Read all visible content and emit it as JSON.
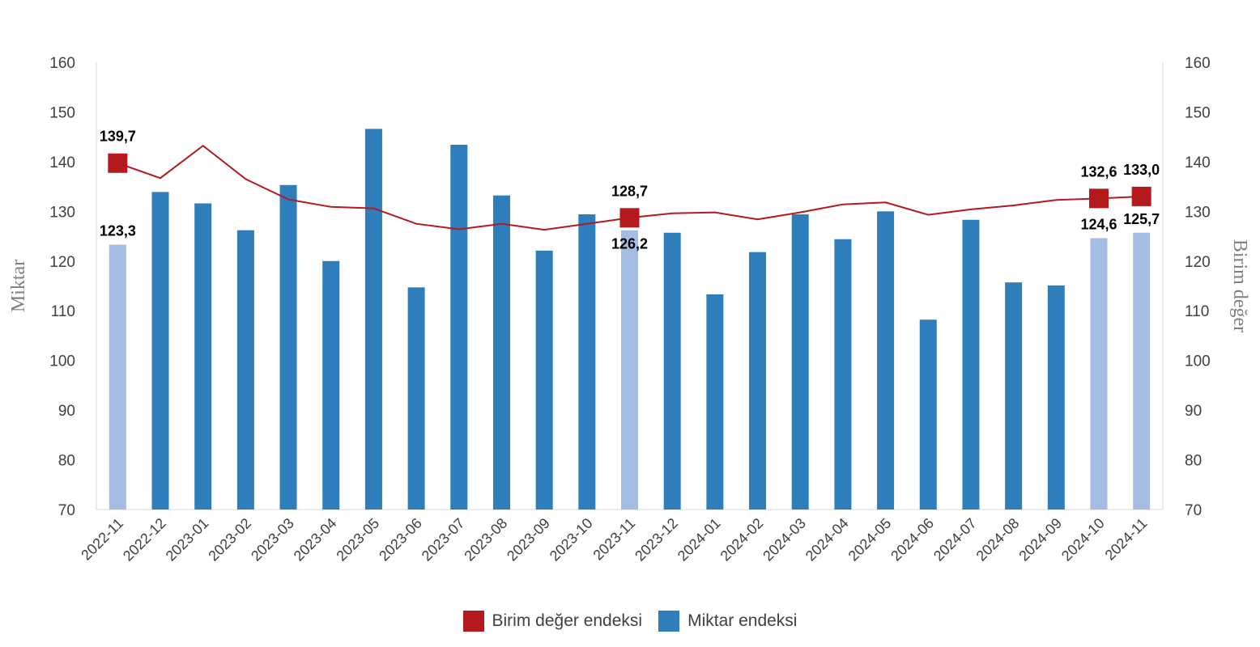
{
  "chart_data": {
    "type": "bar",
    "categories": [
      "2022-11",
      "2022-12",
      "2023-01",
      "2023-02",
      "2023-03",
      "2023-04",
      "2023-05",
      "2023-06",
      "2023-07",
      "2023-08",
      "2023-09",
      "2023-10",
      "2023-11",
      "2023-12",
      "2024-01",
      "2024-02",
      "2024-03",
      "2024-04",
      "2024-05",
      "2024-06",
      "2024-07",
      "2024-08",
      "2024-09",
      "2024-10",
      "2024-11"
    ],
    "series": [
      {
        "name": "Miktar endeksi",
        "type": "bar",
        "axis": "left",
        "color": "#2e7ebb",
        "highlight_color": "#a3bde3",
        "highlight_indices": [
          0,
          12,
          23,
          24
        ],
        "values": [
          123.3,
          133.9,
          131.6,
          126.2,
          135.3,
          120.0,
          146.6,
          114.7,
          143.4,
          133.2,
          122.1,
          129.4,
          126.2,
          125.7,
          113.3,
          121.8,
          129.4,
          124.4,
          130.0,
          108.2,
          128.3,
          115.7,
          115.1,
          124.6,
          125.7
        ]
      },
      {
        "name": "Birim değer endeksi",
        "type": "line",
        "axis": "right",
        "color": "#b3191d",
        "marker_indices": [
          0,
          12,
          23,
          24
        ],
        "values": [
          139.7,
          136.7,
          143.2,
          136.5,
          132.4,
          130.9,
          130.6,
          127.5,
          126.4,
          127.5,
          126.3,
          127.5,
          128.7,
          129.6,
          129.8,
          128.4,
          129.8,
          131.4,
          131.8,
          129.3,
          130.4,
          131.2,
          132.3,
          132.6,
          133.0
        ]
      }
    ],
    "data_labels": [
      {
        "series": 1,
        "index": 0,
        "text": "139,7",
        "position": "above"
      },
      {
        "series": 0,
        "index": 0,
        "text": "123,3",
        "position": "above"
      },
      {
        "series": 1,
        "index": 12,
        "text": "128,7",
        "position": "above"
      },
      {
        "series": 0,
        "index": 12,
        "text": "126,2",
        "position": "below"
      },
      {
        "series": 1,
        "index": 23,
        "text": "132,6",
        "position": "above"
      },
      {
        "series": 0,
        "index": 23,
        "text": "124,6",
        "position": "above"
      },
      {
        "series": 1,
        "index": 24,
        "text": "133,0",
        "position": "above"
      },
      {
        "series": 0,
        "index": 24,
        "text": "125,7",
        "position": "above"
      }
    ],
    "ylabel": "Miktar",
    "y2label": "Birim değer",
    "ylim": [
      70,
      160
    ],
    "y2lim": [
      70,
      160
    ],
    "yticks": [
      70,
      80,
      90,
      100,
      110,
      120,
      130,
      140,
      150,
      160
    ],
    "grid": false,
    "legend": "bottom-center"
  }
}
